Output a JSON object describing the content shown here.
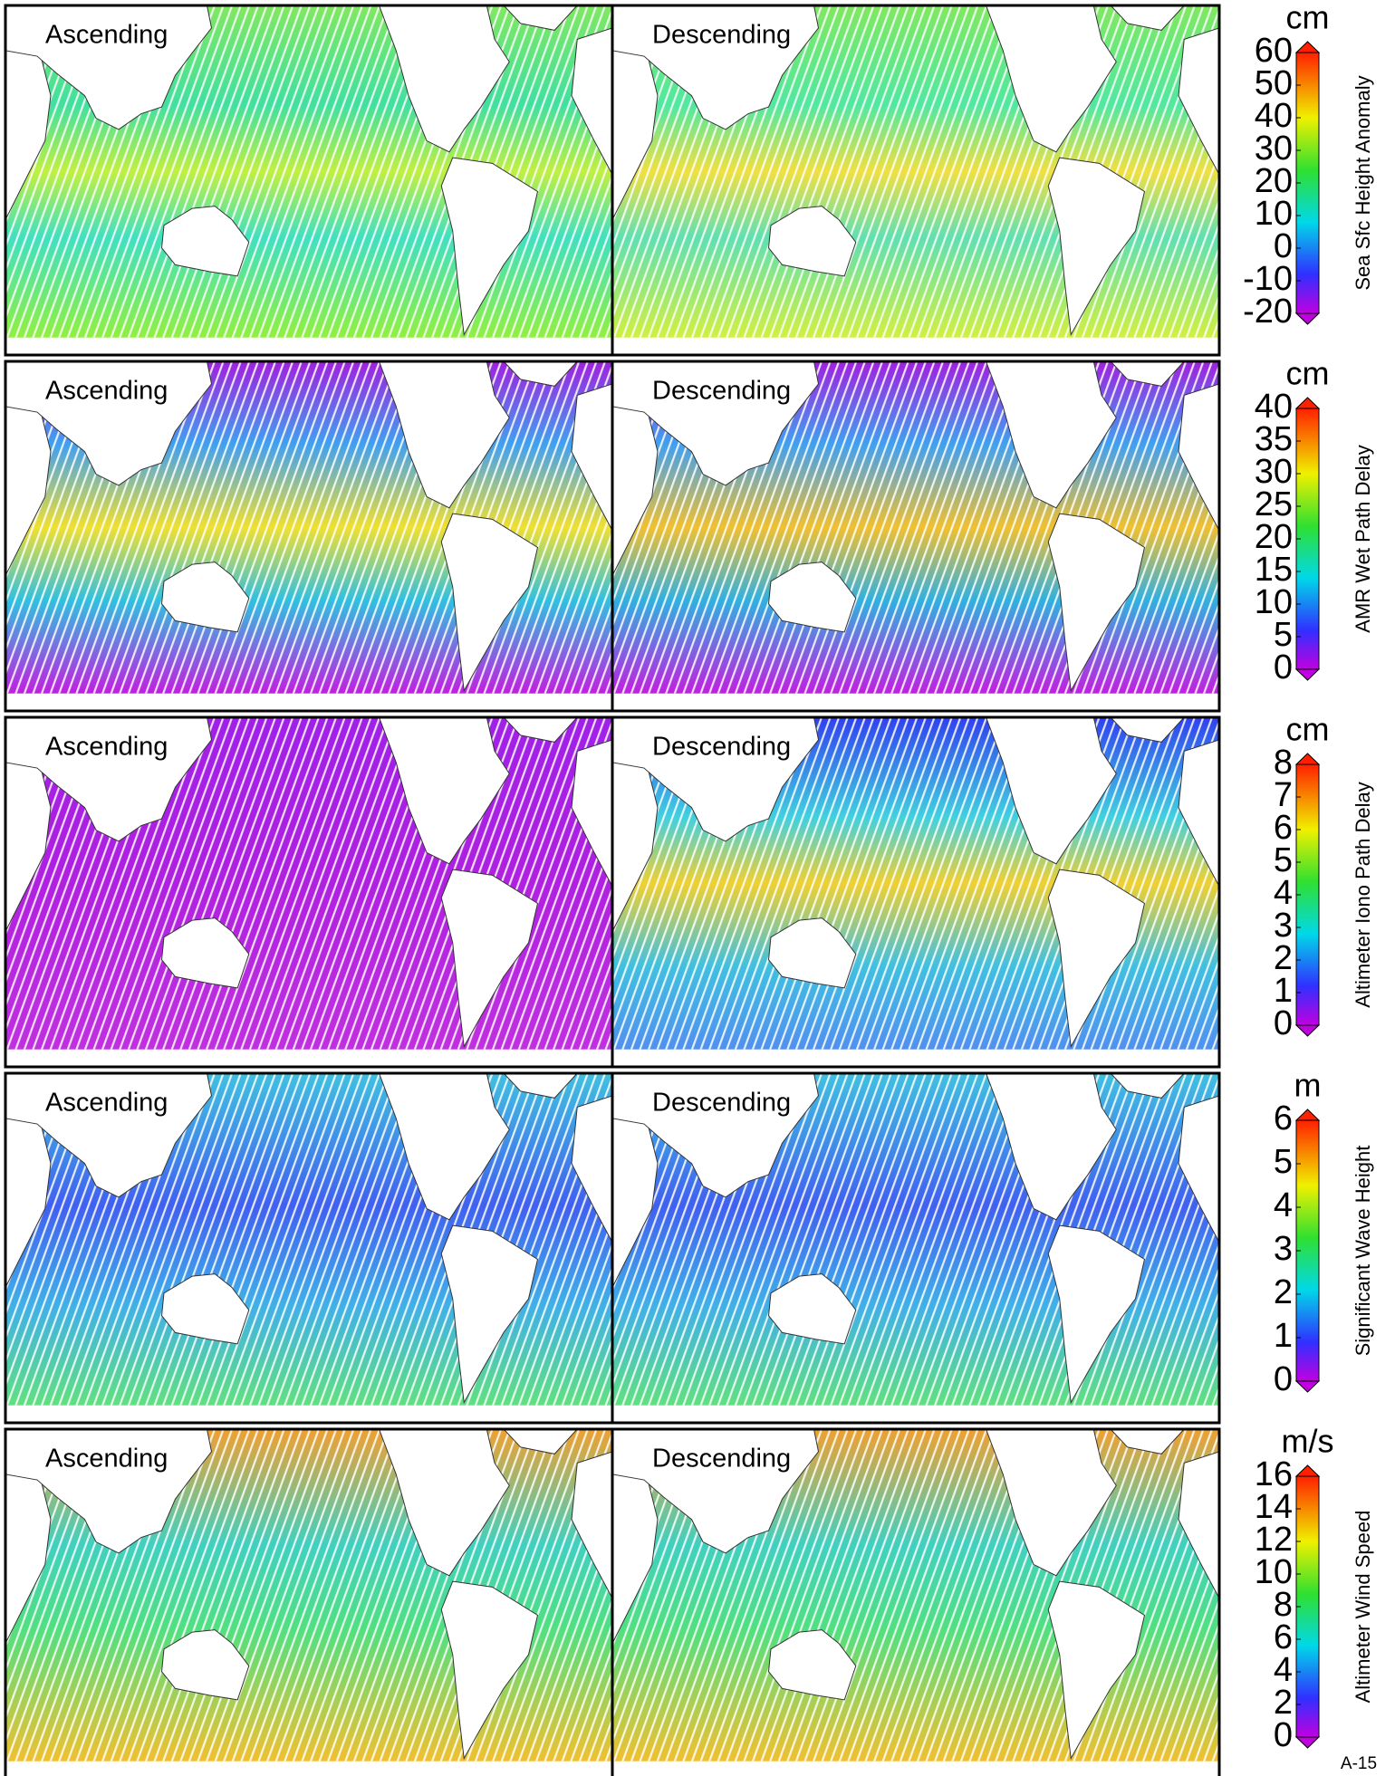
{
  "rows": [
    {
      "panels": [
        "Ascending",
        "Descending"
      ],
      "unit": "cm",
      "label": "Sea Sfc Height Anomaly",
      "ticks": [
        -20,
        -10,
        0,
        10,
        20,
        30,
        40,
        50,
        60
      ]
    },
    {
      "panels": [
        "Ascending",
        "Descending"
      ],
      "unit": "cm",
      "label": "AMR Wet Path Delay",
      "ticks": [
        0,
        5,
        10,
        15,
        20,
        25,
        30,
        35,
        40
      ]
    },
    {
      "panels": [
        "Ascending",
        "Descending"
      ],
      "unit": "cm",
      "label": "Altimeter Iono Path Delay",
      "ticks": [
        0,
        1,
        2,
        3,
        4,
        5,
        6,
        7,
        8
      ]
    },
    {
      "panels": [
        "Ascending",
        "Descending"
      ],
      "unit": "m",
      "label": "Significant Wave Height",
      "ticks": [
        0,
        1,
        2,
        3,
        4,
        5,
        6
      ]
    },
    {
      "panels": [
        "Ascending",
        "Descending"
      ],
      "unit": "m/s",
      "label": "Altimeter Wind Speed",
      "ticks": [
        0,
        2,
        4,
        6,
        8,
        10,
        12,
        14,
        16
      ]
    }
  ],
  "page_number": "A-15"
}
